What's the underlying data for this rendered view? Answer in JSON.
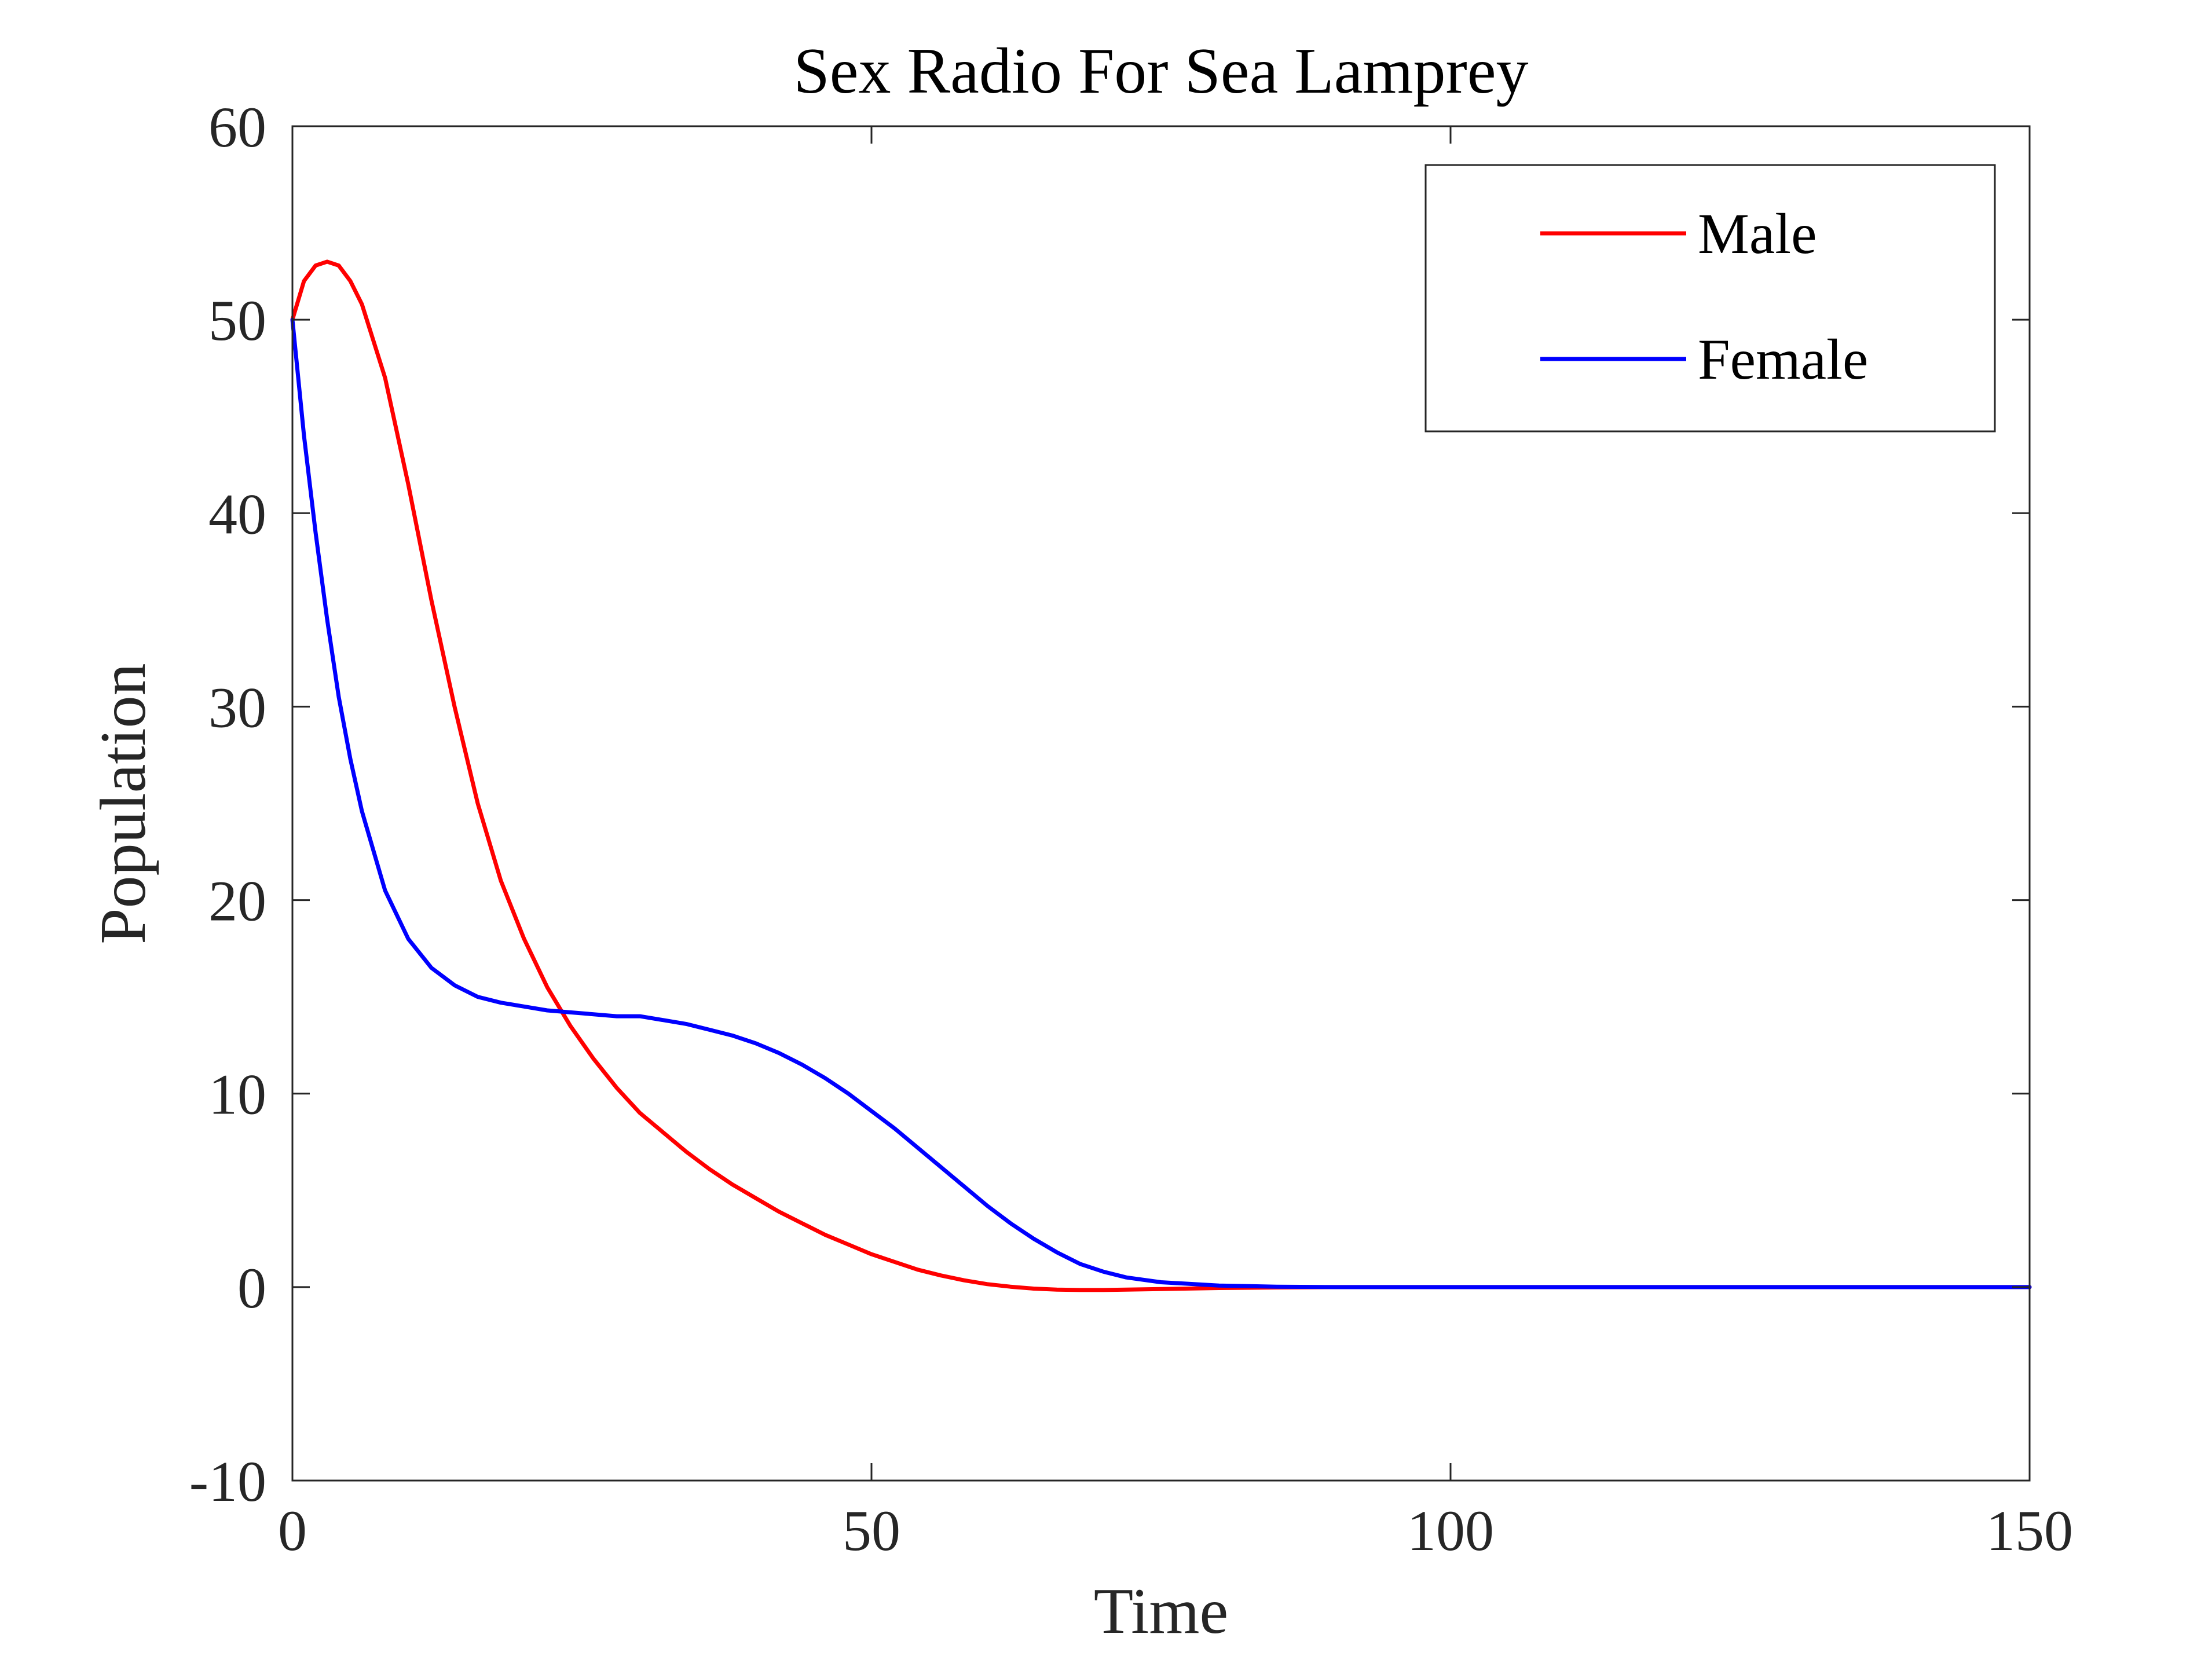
{
  "chart_data": {
    "type": "line",
    "title": "Sex Radio For Sea Lamprey",
    "xlabel": "Time",
    "ylabel": "Population",
    "xlim": [
      0,
      150
    ],
    "ylim": [
      -10,
      60
    ],
    "xticks": [
      0,
      50,
      100,
      150
    ],
    "xtick_labels": [
      "0",
      "50",
      "100",
      "150"
    ],
    "yticks": [
      -10,
      0,
      10,
      20,
      30,
      40,
      50,
      60
    ],
    "ytick_labels": [
      "-10",
      "0",
      "10",
      "20",
      "30",
      "40",
      "50",
      "60"
    ],
    "grid": false,
    "legend_position": "top-right",
    "series": [
      {
        "name": "Male",
        "color": "#ff0000",
        "x": [
          0,
          1,
          2,
          3,
          4,
          5,
          6,
          8,
          10,
          12,
          14,
          16,
          18,
          20,
          22,
          24,
          26,
          28,
          30,
          32,
          34,
          36,
          38,
          40,
          42,
          44,
          46,
          48,
          50,
          52,
          54,
          56,
          58,
          60,
          62,
          64,
          66,
          68,
          70,
          72,
          75,
          80,
          85,
          90,
          100,
          110,
          120,
          130,
          140,
          150
        ],
        "y": [
          50,
          52,
          52.8,
          53,
          52.8,
          52,
          50.8,
          47,
          41.5,
          35.5,
          30,
          25,
          21,
          18,
          15.5,
          13.5,
          11.8,
          10.3,
          9,
          8,
          7,
          6.1,
          5.3,
          4.6,
          3.9,
          3.3,
          2.7,
          2.2,
          1.7,
          1.3,
          0.9,
          0.6,
          0.35,
          0.15,
          0.02,
          -0.08,
          -0.13,
          -0.15,
          -0.15,
          -0.13,
          -0.1,
          -0.05,
          -0.02,
          0,
          0,
          0,
          0,
          0,
          0,
          0
        ]
      },
      {
        "name": "Female",
        "color": "#0000ff",
        "x": [
          0,
          1,
          2,
          3,
          4,
          5,
          6,
          8,
          10,
          12,
          14,
          16,
          18,
          20,
          22,
          24,
          26,
          28,
          29,
          30,
          32,
          34,
          36,
          38,
          40,
          42,
          44,
          46,
          48,
          50,
          52,
          54,
          56,
          58,
          60,
          62,
          64,
          66,
          68,
          70,
          72,
          75,
          80,
          85,
          90,
          100,
          110,
          120,
          130,
          150
        ],
        "y": [
          50,
          44,
          39,
          34.5,
          30.5,
          27.3,
          24.6,
          20.5,
          18,
          16.5,
          15.6,
          15,
          14.7,
          14.5,
          14.3,
          14.2,
          14.1,
          14,
          14,
          14,
          13.8,
          13.6,
          13.3,
          13,
          12.6,
          12.1,
          11.5,
          10.8,
          10,
          9.1,
          8.2,
          7.2,
          6.2,
          5.2,
          4.2,
          3.3,
          2.5,
          1.8,
          1.2,
          0.8,
          0.5,
          0.25,
          0.08,
          0.02,
          0,
          0,
          0,
          0,
          0,
          0
        ]
      }
    ]
  }
}
